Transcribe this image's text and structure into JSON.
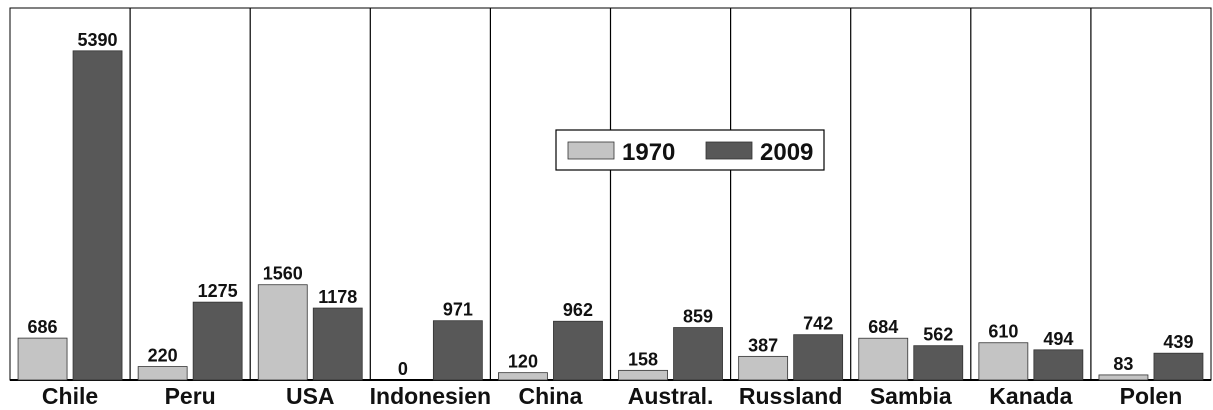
{
  "chart_data": {
    "type": "bar",
    "categories": [
      "Chile",
      "Peru",
      "USA",
      "Indonesien",
      "China",
      "Austral.",
      "Russland",
      "Sambia",
      "Kanada",
      "Polen"
    ],
    "series": [
      {
        "name": "1970",
        "color": "#c4c4c4",
        "values": [
          686,
          220,
          1560,
          0,
          120,
          158,
          387,
          684,
          610,
          83
        ],
        "value_labels": [
          "686",
          "220",
          "1560",
          "0",
          "120",
          "158",
          "387",
          "684",
          "610",
          "83"
        ]
      },
      {
        "name": "2009",
        "color": "#585858",
        "values": [
          5390,
          1275,
          1178,
          971,
          962,
          859,
          742,
          562,
          494,
          439
        ],
        "value_labels": [
          "5390",
          "1275",
          "1178",
          "971",
          "962",
          "859",
          "742",
          "562",
          "494",
          "439"
        ]
      }
    ],
    "ylim": [
      0,
      5600
    ],
    "grid": false,
    "legend_position": "center"
  }
}
